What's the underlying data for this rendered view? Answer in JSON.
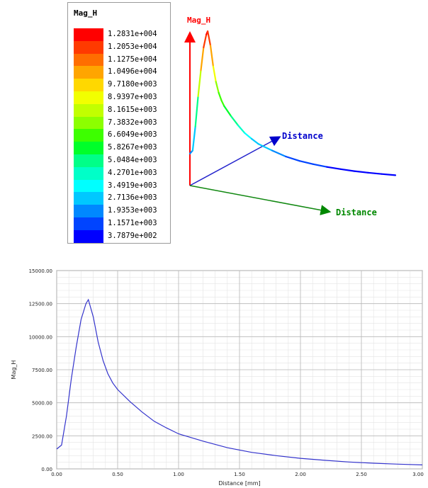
{
  "legend": {
    "title": "Mag_H",
    "entries": [
      {
        "label": "1.2831e+004",
        "color": "#ff0000"
      },
      {
        "label": "1.2053e+004",
        "color": "#ff3a00"
      },
      {
        "label": "1.1275e+004",
        "color": "#ff6e00"
      },
      {
        "label": "1.0496e+004",
        "color": "#ffa500"
      },
      {
        "label": "9.7180e+003",
        "color": "#ffd800"
      },
      {
        "label": "8.9397e+003",
        "color": "#f2ff00"
      },
      {
        "label": "8.1615e+003",
        "color": "#c2ff00"
      },
      {
        "label": "7.3832e+003",
        "color": "#8cff00"
      },
      {
        "label": "6.6049e+003",
        "color": "#3dff00"
      },
      {
        "label": "5.8267e+003",
        "color": "#00ff2a"
      },
      {
        "label": "5.0484e+003",
        "color": "#00ff88"
      },
      {
        "label": "4.2701e+003",
        "color": "#00ffc8"
      },
      {
        "label": "3.4919e+003",
        "color": "#00ffff"
      },
      {
        "label": "2.7136e+003",
        "color": "#00c8ff"
      },
      {
        "label": "1.9353e+003",
        "color": "#0088ff"
      },
      {
        "label": "1.1571e+003",
        "color": "#0044ff"
      },
      {
        "label": "3.7879e+002",
        "color": "#0000ff"
      }
    ]
  },
  "axes3d": {
    "z_label": "Mag_H",
    "y_label": "Distance",
    "x_label": "Distance",
    "z_color": "#ff0000",
    "y_color": "#0000cc",
    "x_color": "#008800"
  },
  "chart_data": {
    "type": "line",
    "xlabel": "Distance [mm]",
    "ylabel": "Mag_H",
    "xlim": [
      0,
      3.0
    ],
    "ylim": [
      0,
      15000
    ],
    "xticks": [
      0,
      0.5,
      1.0,
      1.5,
      2.0,
      2.5,
      3.0
    ],
    "xtick_labels": [
      "0.00",
      "0.50",
      "1.00",
      "1.50",
      "2.00",
      "2.50",
      "3.00"
    ],
    "yticks": [
      0,
      2500,
      5000,
      7500,
      10000,
      12500,
      15000
    ],
    "ytick_labels": [
      "0.00",
      "2500.00",
      "5000.00",
      "7500.00",
      "10000.00",
      "12500.00",
      "15000.00"
    ],
    "grid": true,
    "line_color": "#3333cc",
    "series": [
      {
        "x": [
          0.0,
          0.04,
          0.08,
          0.12,
          0.16,
          0.2,
          0.24,
          0.26,
          0.3,
          0.34,
          0.38,
          0.42,
          0.46,
          0.5,
          0.6,
          0.7,
          0.8,
          0.9,
          1.0,
          1.2,
          1.4,
          1.6,
          1.8,
          2.0,
          2.2,
          2.4,
          2.6,
          2.8,
          3.0
        ],
        "y": [
          1500,
          1800,
          4000,
          6800,
          9200,
          11300,
          12500,
          12800,
          11500,
          9600,
          8200,
          7200,
          6500,
          6000,
          5100,
          4300,
          3600,
          3100,
          2650,
          2100,
          1600,
          1250,
          1000,
          800,
          650,
          520,
          430,
          360,
          300
        ]
      }
    ]
  }
}
